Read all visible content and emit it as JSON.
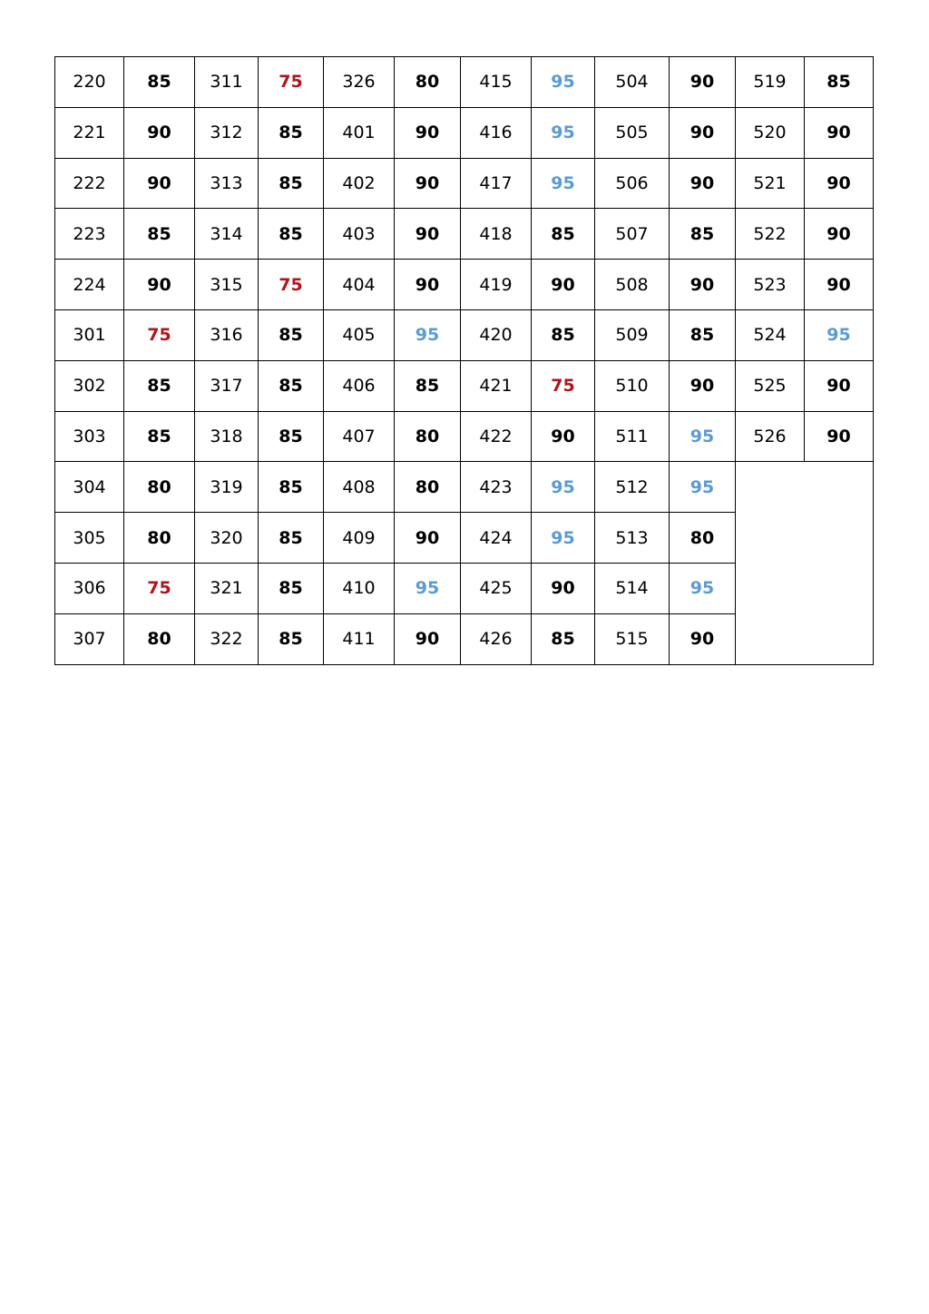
{
  "colors": {
    "75": "#b0151b",
    "95": "#5b9bd5",
    "default": "#000000"
  },
  "rows": [
    [
      [
        "220",
        "85"
      ],
      [
        "311",
        "75"
      ],
      [
        "326",
        "80"
      ],
      [
        "415",
        "95"
      ],
      [
        "504",
        "90"
      ],
      [
        "519",
        "85"
      ]
    ],
    [
      [
        "221",
        "90"
      ],
      [
        "312",
        "85"
      ],
      [
        "401",
        "90"
      ],
      [
        "416",
        "95"
      ],
      [
        "505",
        "90"
      ],
      [
        "520",
        "90"
      ]
    ],
    [
      [
        "222",
        "90"
      ],
      [
        "313",
        "85"
      ],
      [
        "402",
        "90"
      ],
      [
        "417",
        "95"
      ],
      [
        "506",
        "90"
      ],
      [
        "521",
        "90"
      ]
    ],
    [
      [
        "223",
        "85"
      ],
      [
        "314",
        "85"
      ],
      [
        "403",
        "90"
      ],
      [
        "418",
        "85"
      ],
      [
        "507",
        "85"
      ],
      [
        "522",
        "90"
      ]
    ],
    [
      [
        "224",
        "90"
      ],
      [
        "315",
        "75"
      ],
      [
        "404",
        "90"
      ],
      [
        "419",
        "90"
      ],
      [
        "508",
        "90"
      ],
      [
        "523",
        "90"
      ]
    ],
    [
      [
        "301",
        "75"
      ],
      [
        "316",
        "85"
      ],
      [
        "405",
        "95"
      ],
      [
        "420",
        "85"
      ],
      [
        "509",
        "85"
      ],
      [
        "524",
        "95"
      ]
    ],
    [
      [
        "302",
        "85"
      ],
      [
        "317",
        "85"
      ],
      [
        "406",
        "85"
      ],
      [
        "421",
        "75"
      ],
      [
        "510",
        "90"
      ],
      [
        "525",
        "90"
      ]
    ],
    [
      [
        "303",
        "85"
      ],
      [
        "318",
        "85"
      ],
      [
        "407",
        "80"
      ],
      [
        "422",
        "90"
      ],
      [
        "511",
        "95"
      ],
      [
        "526",
        "90"
      ]
    ],
    [
      [
        "304",
        "80"
      ],
      [
        "319",
        "85"
      ],
      [
        "408",
        "80"
      ],
      [
        "423",
        "95"
      ],
      [
        "512",
        "95"
      ]
    ],
    [
      [
        "305",
        "80"
      ],
      [
        "320",
        "85"
      ],
      [
        "409",
        "90"
      ],
      [
        "424",
        "95"
      ],
      [
        "513",
        "80"
      ]
    ],
    [
      [
        "306",
        "75"
      ],
      [
        "321",
        "85"
      ],
      [
        "410",
        "95"
      ],
      [
        "425",
        "90"
      ],
      [
        "514",
        "95"
      ]
    ],
    [
      [
        "307",
        "80"
      ],
      [
        "322",
        "85"
      ],
      [
        "411",
        "90"
      ],
      [
        "426",
        "85"
      ],
      [
        "515",
        "90"
      ]
    ]
  ]
}
